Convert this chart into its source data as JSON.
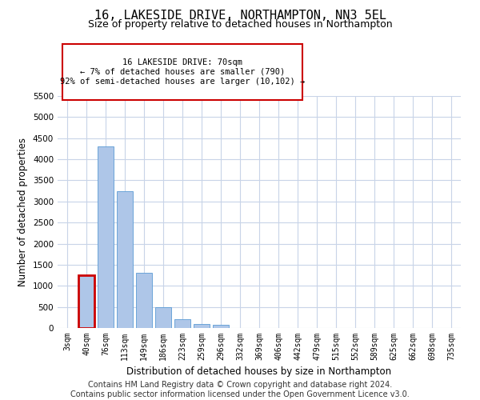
{
  "title": "16, LAKESIDE DRIVE, NORTHAMPTON, NN3 5EL",
  "subtitle": "Size of property relative to detached houses in Northampton",
  "xlabel": "Distribution of detached houses by size in Northampton",
  "ylabel": "Number of detached properties",
  "categories": [
    "3sqm",
    "40sqm",
    "76sqm",
    "113sqm",
    "149sqm",
    "186sqm",
    "223sqm",
    "259sqm",
    "296sqm",
    "332sqm",
    "369sqm",
    "406sqm",
    "442sqm",
    "479sqm",
    "515sqm",
    "552sqm",
    "589sqm",
    "625sqm",
    "662sqm",
    "698sqm",
    "735sqm"
  ],
  "values": [
    0,
    1250,
    4300,
    3250,
    1300,
    500,
    200,
    100,
    70,
    0,
    0,
    0,
    0,
    0,
    0,
    0,
    0,
    0,
    0,
    0,
    0
  ],
  "bar_color": "#aec6e8",
  "bar_edge_color": "#5b9bd5",
  "highlight_bar_index": 1,
  "highlight_color": "#cc0000",
  "annotation_box_text": "16 LAKESIDE DRIVE: 70sqm\n← 7% of detached houses are smaller (790)\n92% of semi-detached houses are larger (10,102) →",
  "ylim": [
    0,
    5500
  ],
  "yticks": [
    0,
    500,
    1000,
    1500,
    2000,
    2500,
    3000,
    3500,
    4000,
    4500,
    5000,
    5500
  ],
  "background_color": "#ffffff",
  "grid_color": "#c8d4e8",
  "title_fontsize": 11,
  "subtitle_fontsize": 9,
  "footer_text": "Contains HM Land Registry data © Crown copyright and database right 2024.\nContains public sector information licensed under the Open Government Licence v3.0.",
  "footer_fontsize": 7
}
